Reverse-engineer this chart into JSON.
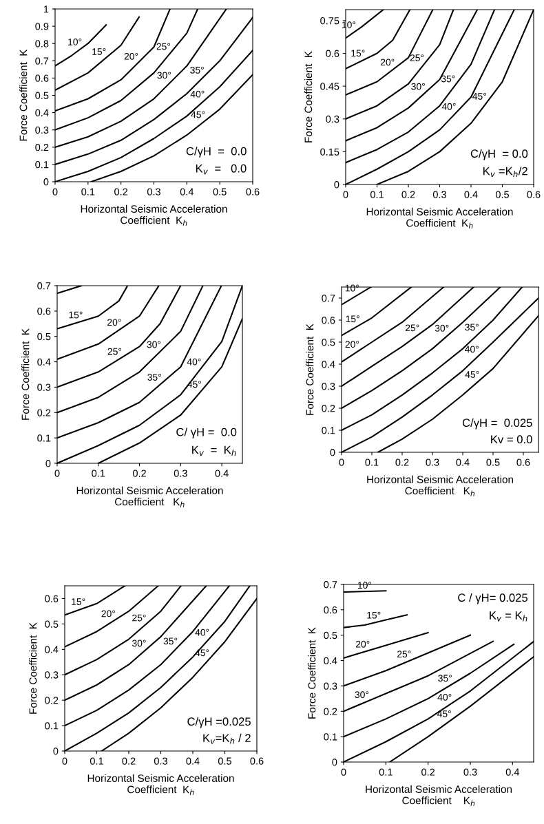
{
  "chart_data": [
    {
      "type": "line",
      "xlabel": "Horizontal Seismic Acceleration\nCoefficient  K$_{h}$",
      "ylabel": "Force Coefficient  K",
      "xlim": [
        0,
        0.6
      ],
      "xticks": [
        0,
        0.1,
        0.2,
        0.3,
        0.4,
        0.5,
        0.6
      ],
      "ylim": [
        0,
        1
      ],
      "yticks": [
        0,
        0.1,
        0.2,
        0.3,
        0.4,
        0.5,
        0.6,
        0.7,
        0.8,
        0.9,
        1
      ],
      "series": [
        {
          "name": "10°",
          "color": "#000000",
          "x": [
            0,
            0.05,
            0.1,
            0.155
          ],
          "values": [
            0.67,
            0.73,
            0.8,
            0.907
          ]
        },
        {
          "name": "15°",
          "color": "#000000",
          "x": [
            0,
            0.1,
            0.2,
            0.255
          ],
          "values": [
            0.53,
            0.63,
            0.79,
            0.953
          ]
        },
        {
          "name": "20°",
          "color": "#000000",
          "x": [
            0,
            0.1,
            0.2,
            0.3,
            0.349
          ],
          "values": [
            0.41,
            0.48,
            0.59,
            0.78,
            1.0
          ]
        },
        {
          "name": "25°",
          "color": "#000000",
          "x": [
            0,
            0.1,
            0.2,
            0.3,
            0.4,
            0.433
          ],
          "values": [
            0.3,
            0.37,
            0.47,
            0.63,
            0.86,
            1.0
          ]
        },
        {
          "name": "30°",
          "color": "#000000",
          "x": [
            0,
            0.1,
            0.2,
            0.3,
            0.4,
            0.52
          ],
          "values": [
            0.2,
            0.26,
            0.35,
            0.48,
            0.67,
            1.0
          ]
        },
        {
          "name": "35°",
          "color": "#000000",
          "x": [
            0,
            0.1,
            0.2,
            0.3,
            0.4,
            0.5,
            0.6
          ],
          "values": [
            0.1,
            0.16,
            0.24,
            0.36,
            0.51,
            0.7,
            0.95
          ]
        },
        {
          "name": "40°",
          "color": "#000000",
          "x": [
            0,
            0.1,
            0.2,
            0.3,
            0.4,
            0.5,
            0.6
          ],
          "values": [
            0,
            0.06,
            0.14,
            0.25,
            0.38,
            0.55,
            0.76
          ]
        },
        {
          "name": "45°",
          "color": "#000000",
          "x": [
            0.11,
            0.2,
            0.3,
            0.4,
            0.5,
            0.6
          ],
          "values": [
            0,
            0.06,
            0.15,
            0.27,
            0.42,
            0.62
          ]
        }
      ],
      "annotations": [
        "C/γH  =  0.0",
        "K$_{v}$  =   0.0"
      ]
    },
    {
      "type": "line",
      "xlabel": "Horizontal Seismic Acceleration\nCoefficient  K$_{h}$",
      "ylabel": "Force Coefficient  K",
      "xlim": [
        0,
        0.6
      ],
      "xticks": [
        0,
        0.1,
        0.2,
        0.3,
        0.4,
        0.5,
        0.6
      ],
      "ylim": [
        0,
        0.8
      ],
      "yticks": [
        0,
        0.15,
        0.3,
        0.45,
        0.6,
        0.75
      ],
      "series": [
        {
          "name": "10°",
          "color": "#000000",
          "x": [
            0,
            0.05,
            0.12
          ],
          "values": [
            0.67,
            0.72,
            0.8
          ]
        },
        {
          "name": "15°",
          "color": "#000000",
          "x": [
            0,
            0.1,
            0.15,
            0.205
          ],
          "values": [
            0.53,
            0.6,
            0.66,
            0.8
          ]
        },
        {
          "name": "20°",
          "color": "#000000",
          "x": [
            0,
            0.1,
            0.2,
            0.278
          ],
          "values": [
            0.41,
            0.47,
            0.58,
            0.8
          ]
        },
        {
          "name": "25°",
          "color": "#000000",
          "x": [
            0,
            0.1,
            0.2,
            0.3,
            0.344
          ],
          "values": [
            0.3,
            0.36,
            0.46,
            0.64,
            0.8
          ]
        },
        {
          "name": "30°",
          "color": "#000000",
          "x": [
            0,
            0.1,
            0.2,
            0.3,
            0.42
          ],
          "values": [
            0.2,
            0.26,
            0.35,
            0.48,
            0.8
          ]
        },
        {
          "name": "35°",
          "color": "#000000",
          "x": [
            0,
            0.1,
            0.2,
            0.3,
            0.4,
            0.475
          ],
          "values": [
            0.1,
            0.16,
            0.24,
            0.36,
            0.55,
            0.8
          ]
        },
        {
          "name": "40°",
          "color": "#000000",
          "x": [
            0,
            0.1,
            0.2,
            0.3,
            0.4,
            0.538
          ],
          "values": [
            0,
            0.07,
            0.15,
            0.25,
            0.4,
            0.8
          ]
        },
        {
          "name": "45°",
          "color": "#000000",
          "x": [
            0.1,
            0.2,
            0.3,
            0.4,
            0.5,
            0.6
          ],
          "values": [
            0,
            0.06,
            0.15,
            0.28,
            0.47,
            0.8
          ]
        }
      ],
      "annotations": [
        "C/γH  = 0.0",
        "K$_{v}$ =K$_{h}$/2"
      ]
    },
    {
      "type": "line",
      "xlabel": "Horizontal Seismic Acceleration\nCoefficient   K$_{h}$",
      "ylabel": "Force Coefficient  K",
      "xlim": [
        0,
        0.45
      ],
      "xticks": [
        0,
        0.1,
        0.2,
        0.3,
        0.4
      ],
      "ylim": [
        0,
        0.7
      ],
      "yticks": [
        0,
        0.1,
        0.2,
        0.3,
        0.4,
        0.5,
        0.6,
        0.7
      ],
      "series": [
        {
          "color": "#000000",
          "x": [
            0,
            0.059
          ],
          "values": [
            0.67,
            0.7
          ]
        },
        {
          "name": "15°",
          "color": "#000000",
          "x": [
            0,
            0.1,
            0.15,
            0.171
          ],
          "values": [
            0.53,
            0.58,
            0.64,
            0.7
          ]
        },
        {
          "name": "20°",
          "color": "#000000",
          "x": [
            0,
            0.1,
            0.2,
            0.247
          ],
          "values": [
            0.41,
            0.47,
            0.58,
            0.7
          ]
        },
        {
          "name": "25°",
          "color": "#000000",
          "x": [
            0,
            0.1,
            0.2,
            0.25,
            0.3
          ],
          "values": [
            0.3,
            0.36,
            0.46,
            0.55,
            0.7
          ]
        },
        {
          "name": "30°",
          "color": "#000000",
          "x": [
            0,
            0.1,
            0.2,
            0.3,
            0.354
          ],
          "values": [
            0.2,
            0.26,
            0.36,
            0.52,
            0.7
          ]
        },
        {
          "name": "35°",
          "color": "#000000",
          "x": [
            0,
            0.1,
            0.2,
            0.3,
            0.399
          ],
          "values": [
            0.1,
            0.16,
            0.24,
            0.38,
            0.7
          ]
        },
        {
          "name": "40°",
          "color": "#000000",
          "x": [
            0,
            0.1,
            0.2,
            0.3,
            0.4,
            0.45
          ],
          "values": [
            0,
            0.07,
            0.15,
            0.27,
            0.48,
            0.7
          ]
        },
        {
          "name": "45°",
          "color": "#000000",
          "x": [
            0.1,
            0.2,
            0.3,
            0.4,
            0.45
          ],
          "values": [
            0,
            0.08,
            0.19,
            0.38,
            0.57
          ]
        }
      ],
      "annotations": [
        "C/ γH =  0.0",
        "K$_{v}$  =  K$_{h}$"
      ]
    },
    {
      "type": "line",
      "xlabel": "Horizontal Seismic Acceleration\nCoefficient   K$_{h}$",
      "ylabel": "Force Coefficient  K",
      "xlim": [
        0,
        0.65
      ],
      "xticks": [
        0,
        0.1,
        0.2,
        0.3,
        0.4,
        0.5,
        0.6
      ],
      "ylim": [
        0,
        0.75
      ],
      "yticks": [
        0,
        0.1,
        0.2,
        0.3,
        0.4,
        0.5,
        0.6,
        0.7
      ],
      "series": [
        {
          "name": "10°",
          "color": "#000000",
          "x": [
            0,
            0.097
          ],
          "values": [
            0.67,
            0.75
          ]
        },
        {
          "name": "15°",
          "color": "#000000",
          "x": [
            0,
            0.1,
            0.23
          ],
          "values": [
            0.53,
            0.61,
            0.75
          ]
        },
        {
          "name": "20°",
          "color": "#000000",
          "x": [
            0,
            0.1,
            0.2,
            0.337
          ],
          "values": [
            0.41,
            0.5,
            0.59,
            0.75
          ]
        },
        {
          "name": "25°",
          "color": "#000000",
          "x": [
            0,
            0.1,
            0.2,
            0.3,
            0.436
          ],
          "values": [
            0.3,
            0.39,
            0.48,
            0.58,
            0.75
          ]
        },
        {
          "name": "30°",
          "color": "#000000",
          "x": [
            0,
            0.1,
            0.2,
            0.3,
            0.4,
            0.524
          ],
          "values": [
            0.2,
            0.28,
            0.37,
            0.47,
            0.59,
            0.75
          ]
        },
        {
          "name": "35°",
          "color": "#000000",
          "x": [
            0,
            0.1,
            0.2,
            0.3,
            0.4,
            0.5,
            0.596
          ],
          "values": [
            0.1,
            0.17,
            0.26,
            0.36,
            0.47,
            0.6,
            0.75
          ]
        },
        {
          "name": "40°",
          "color": "#000000",
          "x": [
            0,
            0.1,
            0.2,
            0.3,
            0.4,
            0.5,
            0.65
          ],
          "values": [
            0,
            0.07,
            0.16,
            0.26,
            0.37,
            0.5,
            0.7
          ]
        },
        {
          "name": "45°",
          "color": "#000000",
          "x": [
            0.12,
            0.2,
            0.3,
            0.4,
            0.5,
            0.65
          ],
          "values": [
            0,
            0.06,
            0.15,
            0.26,
            0.38,
            0.62
          ]
        }
      ],
      "annotations": [
        "C/γH =  0.025",
        "Kv = 0.0"
      ]
    },
    {
      "type": "line",
      "xlabel": "Horizontal Seismic Acceleration\nCoefficient  K$_{h}$",
      "ylabel": "Force Coefficient  K",
      "xlim": [
        0,
        0.6
      ],
      "xticks": [
        0,
        0.1,
        0.2,
        0.3,
        0.4,
        0.5,
        0.6
      ],
      "ylim": [
        0,
        0.65
      ],
      "yticks": [
        0,
        0.1,
        0.2,
        0.3,
        0.4,
        0.5,
        0.6
      ],
      "series": [
        {
          "name": "15°",
          "color": "#000000",
          "x": [
            0,
            0.1,
            0.188
          ],
          "values": [
            0.535,
            0.58,
            0.65
          ]
        },
        {
          "name": "20°",
          "color": "#000000",
          "x": [
            0,
            0.1,
            0.2,
            0.292
          ],
          "values": [
            0.41,
            0.47,
            0.55,
            0.65
          ]
        },
        {
          "name": "25°",
          "color": "#000000",
          "x": [
            0,
            0.1,
            0.2,
            0.3,
            0.363
          ],
          "values": [
            0.3,
            0.36,
            0.44,
            0.55,
            0.65
          ]
        },
        {
          "name": "30°",
          "color": "#000000",
          "x": [
            0,
            0.1,
            0.2,
            0.3,
            0.442
          ],
          "values": [
            0.2,
            0.26,
            0.34,
            0.45,
            0.65
          ]
        },
        {
          "name": "35°",
          "color": "#000000",
          "x": [
            0,
            0.1,
            0.2,
            0.3,
            0.4,
            0.514
          ],
          "values": [
            0.1,
            0.16,
            0.24,
            0.34,
            0.47,
            0.65
          ]
        },
        {
          "name": "40°",
          "color": "#000000",
          "x": [
            0,
            0.1,
            0.2,
            0.3,
            0.4,
            0.5,
            0.578
          ],
          "values": [
            0,
            0.07,
            0.15,
            0.25,
            0.37,
            0.51,
            0.65
          ]
        },
        {
          "name": "45°",
          "color": "#000000",
          "x": [
            0.115,
            0.2,
            0.3,
            0.4,
            0.5,
            0.6
          ],
          "values": [
            0,
            0.07,
            0.17,
            0.29,
            0.43,
            0.6
          ]
        }
      ],
      "annotations": [
        "C/γH =0.025",
        "K$_{v}$=K$_{h}$ / 2"
      ]
    },
    {
      "type": "line",
      "xlabel": "Horizontal Seismic Acceleration\nCoefficient    K$_{h}$",
      "ylabel": "Force Coefficient  K",
      "xlim": [
        0,
        0.45
      ],
      "xticks": [
        0,
        0.1,
        0.2,
        0.3,
        0.4
      ],
      "ylim": [
        0,
        0.7
      ],
      "yticks": [
        0,
        0.1,
        0.2,
        0.3,
        0.4,
        0.5,
        0.6,
        0.7
      ],
      "series": [
        {
          "name": "10°",
          "color": "#000000",
          "x": [
            0,
            0.1
          ],
          "values": [
            0.67,
            0.675
          ]
        },
        {
          "name": "15°",
          "color": "#000000",
          "x": [
            0,
            0.05,
            0.1,
            0.15
          ],
          "values": [
            0.53,
            0.54,
            0.56,
            0.58
          ]
        },
        {
          "name": "20°",
          "color": "#000000",
          "x": [
            0,
            0.1,
            0.2
          ],
          "values": [
            0.41,
            0.46,
            0.51
          ]
        },
        {
          "name": "25°",
          "color": "#000000",
          "x": [
            0,
            0.1,
            0.2,
            0.3
          ],
          "values": [
            0.3,
            0.36,
            0.43,
            0.5
          ]
        },
        {
          "name": "30°",
          "color": "#000000",
          "x": [
            0,
            0.1,
            0.2,
            0.354
          ],
          "values": [
            0.2,
            0.27,
            0.34,
            0.476
          ]
        },
        {
          "name": "35°",
          "color": "#000000",
          "x": [
            0,
            0.1,
            0.2,
            0.3,
            0.403
          ],
          "values": [
            0.1,
            0.17,
            0.25,
            0.35,
            0.464
          ]
        },
        {
          "name": "40°",
          "color": "#000000",
          "x": [
            0,
            0.1,
            0.2,
            0.3,
            0.45
          ],
          "values": [
            0,
            0.08,
            0.17,
            0.28,
            0.475
          ]
        },
        {
          "name": "45°",
          "color": "#000000",
          "x": [
            0.109,
            0.2,
            0.3,
            0.45
          ],
          "values": [
            0,
            0.1,
            0.22,
            0.415
          ]
        }
      ],
      "annotations": [
        "C / γH= 0.025",
        "K$_{v}$ = K$_{h}$"
      ]
    }
  ]
}
